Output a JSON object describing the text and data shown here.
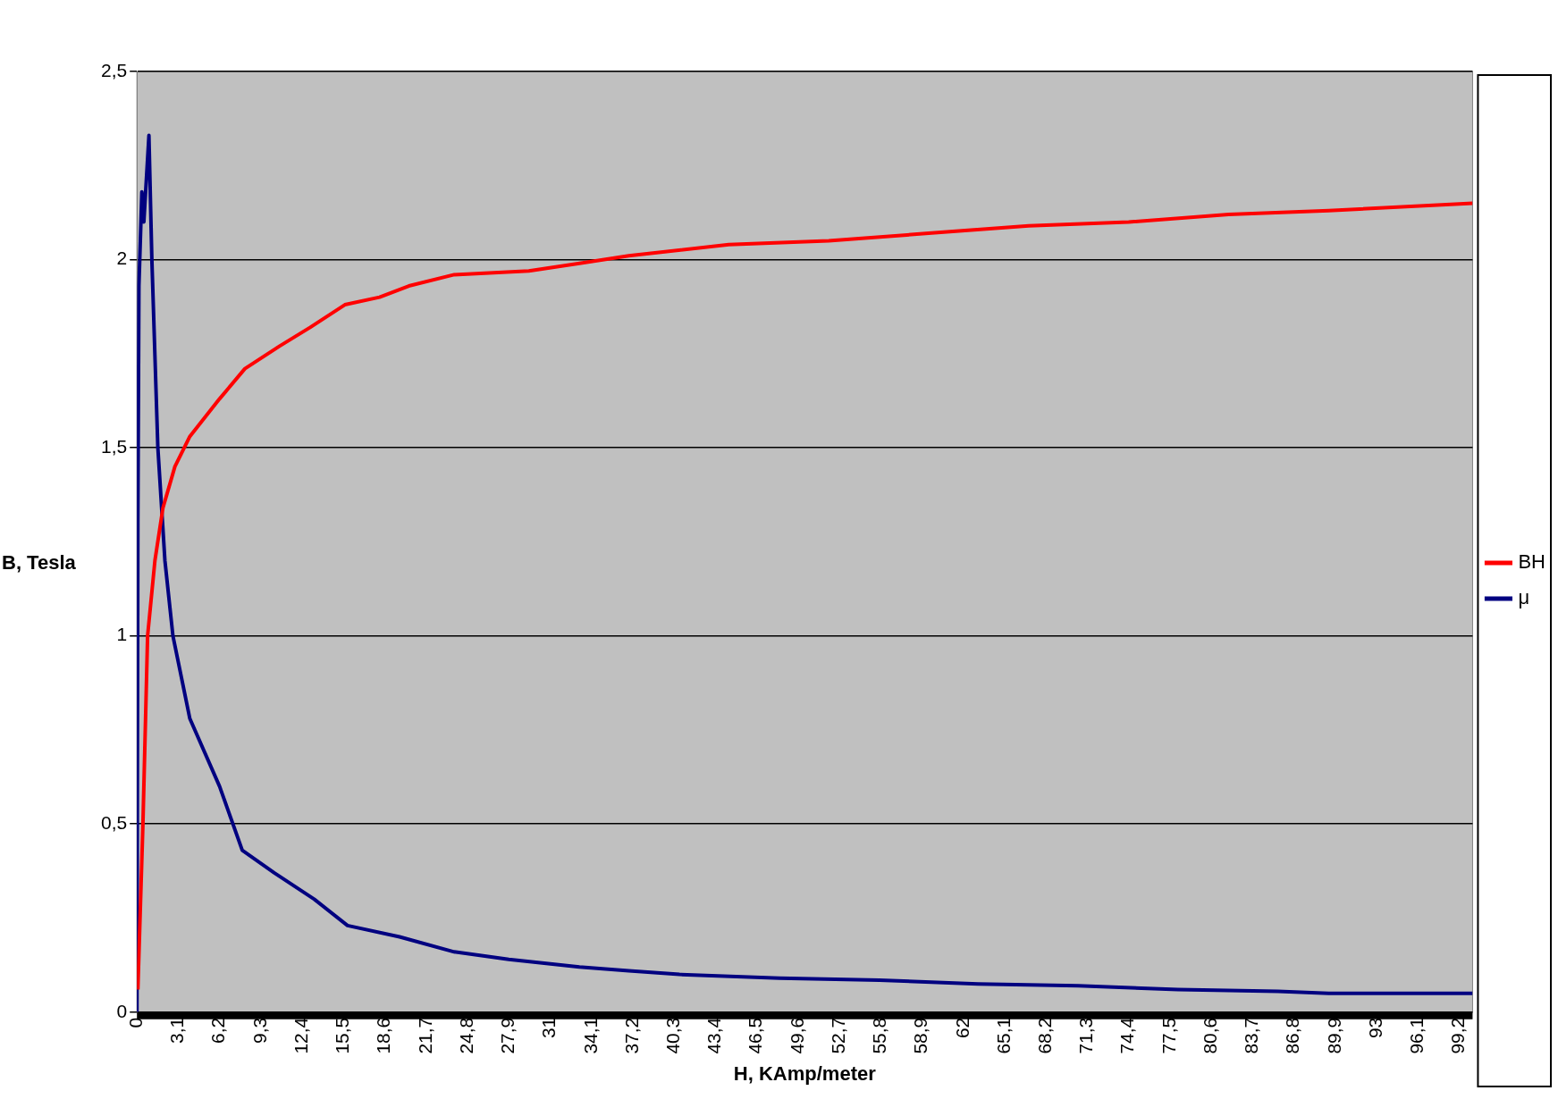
{
  "chart_data": {
    "type": "line",
    "xlabel": "H, KAmp/meter",
    "ylabel": "B, Tesla",
    "series": [
      {
        "name": "BH",
        "color": "#ff0000",
        "x": [
          0.07,
          0.45,
          0.8,
          1.35,
          1.95,
          2.85,
          3.97,
          6.2,
          8.1,
          10.7,
          13,
          15.6,
          18.2,
          20.4,
          23.8,
          29.4,
          33.2,
          36.9,
          44.4,
          51.9,
          59.4,
          66.9,
          74.4,
          81.9,
          89.4,
          100.2
        ],
        "values": [
          0.06,
          0.5,
          1.0,
          1.2,
          1.34,
          1.45,
          1.53,
          1.63,
          1.71,
          1.77,
          1.82,
          1.88,
          1.9,
          1.93,
          1.96,
          1.97,
          1.99,
          2.01,
          2.04,
          2.05,
          2.07,
          2.09,
          2.1,
          2.12,
          2.13,
          2.15
        ]
      },
      {
        "name": "μ",
        "color": "#000080",
        "x": [
          0,
          0.07,
          0.15,
          0.37,
          0.52,
          0.9,
          1.12,
          1.57,
          2.1,
          2.7,
          3.97,
          6.2,
          7.2,
          7.9,
          10.3,
          13.3,
          15.8,
          19.7,
          23.8,
          27.9,
          33.2,
          36.9,
          40.7,
          48.2,
          55.7,
          63.1,
          70.6,
          78.1,
          85.6,
          89.4,
          100.2
        ],
        "values": [
          0,
          1.3,
          1.93,
          2.18,
          2.1,
          2.33,
          2.0,
          1.5,
          1.2,
          1.0,
          0.78,
          0.6,
          0.5,
          0.43,
          0.37,
          0.3,
          0.23,
          0.2,
          0.16,
          0.14,
          0.12,
          0.11,
          0.1,
          0.09,
          0.085,
          0.075,
          0.07,
          0.06,
          0.055,
          0.05,
          0.05
        ]
      }
    ],
    "xlim": [
      0,
      100.2
    ],
    "xticks": [
      0,
      {
        "value": 3.1,
        "label": "3,1"
      },
      {
        "value": 6.2,
        "label": "6,2"
      },
      {
        "value": 9.3,
        "label": "9,3"
      },
      {
        "value": 12.4,
        "label": "12,4"
      },
      {
        "value": 15.5,
        "label": "15,5"
      },
      {
        "value": 18.6,
        "label": "18,6"
      },
      {
        "value": 21.7,
        "label": "21,7"
      },
      {
        "value": 24.8,
        "label": "24,8"
      },
      {
        "value": 27.9,
        "label": "27,9"
      },
      31,
      {
        "value": 34.1,
        "label": "34,1"
      },
      {
        "value": 37.2,
        "label": "37,2"
      },
      {
        "value": 40.3,
        "label": "40,3"
      },
      {
        "value": 43.4,
        "label": "43,4"
      },
      {
        "value": 46.5,
        "label": "46,5"
      },
      {
        "value": 49.6,
        "label": "49,6"
      },
      {
        "value": 52.7,
        "label": "52,7"
      },
      {
        "value": 55.8,
        "label": "55,8"
      },
      {
        "value": 58.9,
        "label": "58,9"
      },
      62,
      {
        "value": 65.1,
        "label": "65,1"
      },
      {
        "value": 68.2,
        "label": "68,2"
      },
      {
        "value": 71.3,
        "label": "71,3"
      },
      {
        "value": 74.4,
        "label": "74,4"
      },
      {
        "value": 77.5,
        "label": "77,5"
      },
      {
        "value": 80.6,
        "label": "80,6"
      },
      {
        "value": 83.7,
        "label": "83,7"
      },
      {
        "value": 86.8,
        "label": "86,8"
      },
      {
        "value": 89.9,
        "label": "89,9"
      },
      93,
      {
        "value": 96.1,
        "label": "96,1"
      },
      {
        "value": 99.2,
        "label": "99,2"
      }
    ],
    "ylim": [
      0,
      2.5
    ],
    "yticks": [
      0,
      {
        "value": 0.5,
        "label": "0,5"
      },
      1,
      {
        "value": 1.5,
        "label": "1,5"
      },
      2,
      {
        "value": 2.5,
        "label": "2,5"
      }
    ],
    "grid": "y",
    "legend": "right"
  }
}
